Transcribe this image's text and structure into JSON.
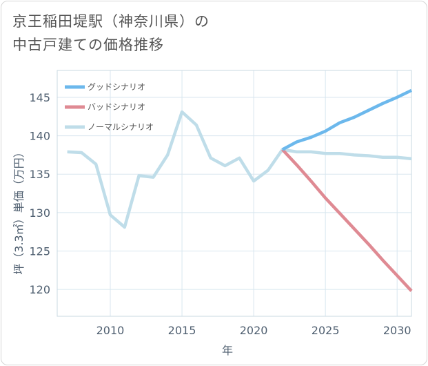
{
  "title": {
    "line1": "京王稲田堤駅（神奈川県）の",
    "line2": "中古戸建ての価格推移"
  },
  "chart_data": {
    "type": "line",
    "xlabel": "年",
    "ylabel": "坪（3.3㎡）単価（万円）",
    "xlim": [
      2006.3,
      2031
    ],
    "ylim": [
      116.5,
      148.5
    ],
    "xticks": [
      2010,
      2015,
      2020,
      2025,
      2030
    ],
    "yticks": [
      120,
      125,
      130,
      135,
      140,
      145
    ],
    "grid": true,
    "legend_position": "top-left",
    "series": [
      {
        "name": "グッドシナリオ",
        "color": "#6cb8ec",
        "x": [
          2022,
          2023,
          2024,
          2025,
          2026,
          2027,
          2028,
          2029,
          2030,
          2031
        ],
        "y": [
          138.2,
          139.2,
          139.8,
          140.6,
          141.7,
          142.4,
          143.3,
          144.2,
          145.0,
          145.9
        ]
      },
      {
        "name": "バッドシナリオ",
        "color": "#df8a93",
        "x": [
          2022,
          2023,
          2024,
          2025,
          2026,
          2027,
          2028,
          2029,
          2030,
          2031
        ],
        "y": [
          138.2,
          136.2,
          134.1,
          131.9,
          129.9,
          127.9,
          125.9,
          123.8,
          121.8,
          119.8
        ]
      },
      {
        "name": "ノーマルシナリオ",
        "color": "#bfdde9",
        "x": [
          2007,
          2008,
          2009,
          2010,
          2011,
          2012,
          2013,
          2014,
          2015,
          2016,
          2017,
          2018,
          2019,
          2020,
          2021,
          2022,
          2023,
          2024,
          2025,
          2026,
          2027,
          2028,
          2029,
          2030,
          2031
        ],
        "y": [
          137.9,
          137.8,
          136.3,
          129.7,
          128.1,
          134.8,
          134.6,
          137.5,
          143.1,
          141.4,
          137.1,
          136.1,
          137.1,
          134.1,
          135.5,
          138.2,
          137.9,
          137.9,
          137.7,
          137.7,
          137.5,
          137.4,
          137.2,
          137.2,
          137.0
        ]
      }
    ]
  }
}
